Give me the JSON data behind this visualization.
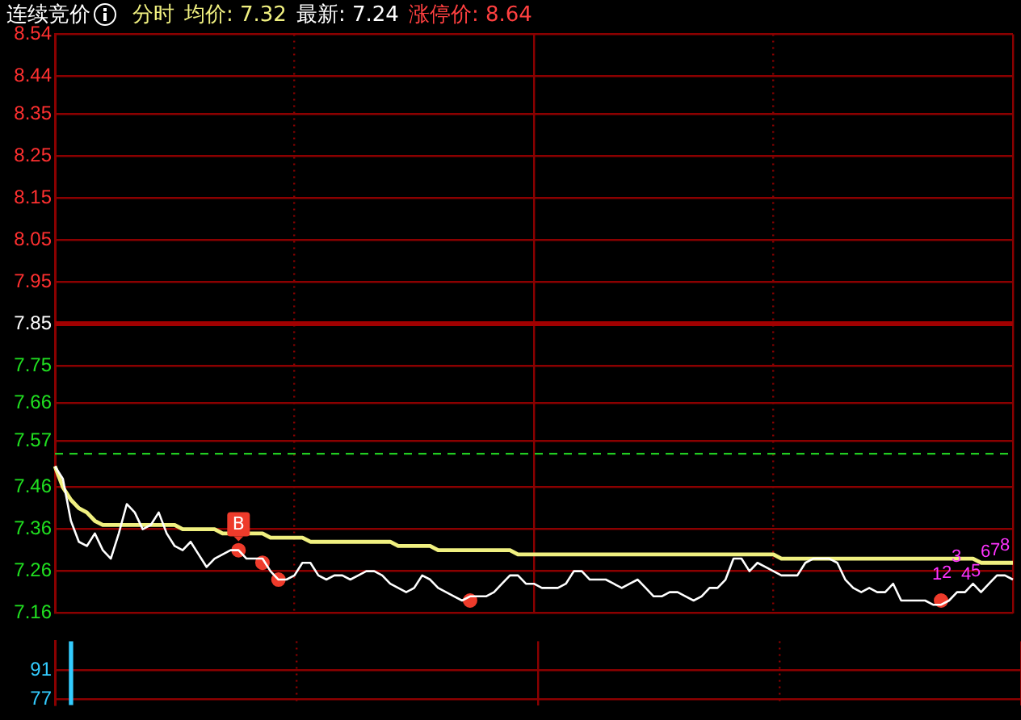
{
  "chart_data": [
    {
      "type": "line",
      "title": "连续竞价",
      "annotations": [
        "分时",
        "均价: 7.32",
        "最新: 7.24",
        "涨停价: 8.64",
        {
          "text": "B",
          "y": 7.37
        },
        "1",
        "2",
        "3",
        "4",
        "5",
        "6",
        "7",
        "8"
      ],
      "categories": [
        null,
        null,
        null,
        null,
        null,
        null,
        null,
        null,
        null,
        null,
        null,
        null,
        null,
        null,
        null,
        null,
        null,
        null,
        null,
        null,
        null,
        null,
        null,
        null,
        null,
        null,
        null,
        null,
        null,
        null,
        null,
        null,
        null,
        null,
        null,
        null,
        null,
        null,
        null,
        null,
        null,
        null,
        null,
        null,
        null,
        null,
        null,
        null,
        null,
        null,
        null,
        null,
        null,
        null,
        null,
        null,
        null,
        null,
        null,
        null,
        null,
        null,
        null,
        null,
        null,
        null,
        null,
        null,
        null,
        null,
        null,
        null,
        null,
        null,
        null,
        null,
        null,
        null,
        null,
        null,
        null,
        null,
        null,
        null,
        null,
        null,
        null,
        null,
        null,
        null,
        null,
        null,
        null,
        null,
        null,
        null,
        null,
        null,
        null,
        null,
        null,
        null,
        null,
        null,
        null,
        null,
        null,
        null,
        null,
        null,
        null,
        null,
        null,
        null,
        null,
        null,
        null,
        null,
        null,
        null,
        null
      ],
      "ylim": [
        7.16,
        8.54
      ],
      "yticks": [
        8.54,
        8.44,
        8.35,
        8.25,
        8.15,
        8.05,
        7.95,
        7.85,
        7.75,
        7.66,
        7.57,
        7.46,
        7.36,
        7.26,
        7.16
      ],
      "tick_labels": "y",
      "grid": true,
      "legend": false,
      "ref_lines": [
        {
          "axis": "y",
          "value": 7.85,
          "color": "#a00000"
        },
        {
          "axis": "y",
          "value": 7.54,
          "color": "#22cc22",
          "line_style": "dashed"
        }
      ],
      "series": [
        {
          "color": "#ffffff",
          "marker": "none",
          "values": [
            7.51,
            7.48,
            7.38,
            7.33,
            7.32,
            7.35,
            7.31,
            7.29,
            7.35,
            7.42,
            7.4,
            7.36,
            7.37,
            7.4,
            7.35,
            7.32,
            7.31,
            7.33,
            7.3,
            7.27,
            7.29,
            7.3,
            7.31,
            7.31,
            7.29,
            7.29,
            7.29,
            7.26,
            7.24,
            7.24,
            7.25,
            7.28,
            7.28,
            7.25,
            7.24,
            7.25,
            7.25,
            7.24,
            7.25,
            7.26,
            7.26,
            7.25,
            7.23,
            7.22,
            7.21,
            7.22,
            7.25,
            7.24,
            7.22,
            7.21,
            7.2,
            7.19,
            7.2,
            7.2,
            7.2,
            7.21,
            7.23,
            7.25,
            7.25,
            7.23,
            7.23,
            7.22,
            7.22,
            7.22,
            7.23,
            7.26,
            7.26,
            7.24,
            7.24,
            7.24,
            7.23,
            7.22,
            7.23,
            7.24,
            7.22,
            7.2,
            7.2,
            7.21,
            7.21,
            7.2,
            7.19,
            7.2,
            7.22,
            7.22,
            7.24,
            7.29,
            7.29,
            7.26,
            7.28,
            7.27,
            7.26,
            7.25,
            7.25,
            7.25,
            7.28,
            7.29,
            7.29,
            7.29,
            7.28,
            7.24,
            7.22,
            7.21,
            7.22,
            7.21,
            7.21,
            7.23,
            7.19,
            7.19,
            7.19,
            7.19,
            7.18,
            7.18,
            7.19,
            7.21,
            7.21,
            7.23,
            7.21,
            7.23,
            7.25,
            7.25,
            7.24
          ]
        },
        {
          "color": "#f0f080",
          "marker": "none",
          "values": [
            7.51,
            7.46,
            7.43,
            7.41,
            7.4,
            7.38,
            7.37,
            7.37,
            7.37,
            7.37,
            7.37,
            7.37,
            7.37,
            7.37,
            7.37,
            7.37,
            7.36,
            7.36,
            7.36,
            7.36,
            7.36,
            7.35,
            7.35,
            7.35,
            7.35,
            7.35,
            7.35,
            7.34,
            7.34,
            7.34,
            7.34,
            7.34,
            7.33,
            7.33,
            7.33,
            7.33,
            7.33,
            7.33,
            7.33,
            7.33,
            7.33,
            7.33,
            7.33,
            7.32,
            7.32,
            7.32,
            7.32,
            7.32,
            7.31,
            7.31,
            7.31,
            7.31,
            7.31,
            7.31,
            7.31,
            7.31,
            7.31,
            7.31,
            7.3,
            7.3,
            7.3,
            7.3,
            7.3,
            7.3,
            7.3,
            7.3,
            7.3,
            7.3,
            7.3,
            7.3,
            7.3,
            7.3,
            7.3,
            7.3,
            7.3,
            7.3,
            7.3,
            7.3,
            7.3,
            7.3,
            7.3,
            7.3,
            7.3,
            7.3,
            7.3,
            7.3,
            7.3,
            7.3,
            7.3,
            7.3,
            7.3,
            7.29,
            7.29,
            7.29,
            7.29,
            7.29,
            7.29,
            7.29,
            7.29,
            7.29,
            7.29,
            7.29,
            7.29,
            7.29,
            7.29,
            7.29,
            7.29,
            7.29,
            7.29,
            7.29,
            7.29,
            7.29,
            7.29,
            7.29,
            7.29,
            7.29,
            7.28,
            7.28,
            7.28,
            7.28,
            7.28
          ]
        },
        {
          "type": "scatter",
          "color": "#ee3b2b",
          "marker": "circle",
          "values": [
            null,
            null,
            null,
            null,
            null,
            null,
            null,
            null,
            null,
            null,
            null,
            null,
            null,
            null,
            null,
            null,
            null,
            null,
            null,
            null,
            null,
            null,
            null,
            7.31,
            null,
            null,
            7.28,
            null,
            7.24,
            null,
            null,
            null,
            null,
            null,
            null,
            null,
            null,
            null,
            null,
            null,
            null,
            null,
            null,
            null,
            null,
            null,
            null,
            null,
            null,
            null,
            null,
            null,
            7.19,
            null,
            null,
            null,
            null,
            null,
            null,
            null,
            null,
            null,
            null,
            null,
            null,
            null,
            null,
            null,
            null,
            null,
            null,
            null,
            null,
            null,
            null,
            null,
            null,
            null,
            null,
            null,
            null,
            null,
            null,
            null,
            null,
            null,
            null,
            null,
            null,
            null,
            null,
            null,
            null,
            null,
            null,
            null,
            null,
            null,
            null,
            null,
            null,
            null,
            null,
            null,
            null,
            null,
            null,
            null,
            null,
            null,
            null,
            7.19,
            null,
            null,
            null,
            null,
            null,
            null,
            null,
            null,
            null
          ]
        }
      ]
    },
    {
      "type": "bar",
      "categories": [
        null,
        null,
        null,
        null,
        null,
        null,
        null,
        null,
        null,
        null,
        null,
        null,
        null,
        null,
        null,
        null,
        null,
        null,
        null,
        null,
        null,
        null,
        null,
        null,
        null,
        null,
        null,
        null,
        null,
        null,
        null,
        null,
        null,
        null,
        null,
        null,
        null,
        null,
        null,
        null,
        null,
        null,
        null,
        null,
        null,
        null,
        null,
        null,
        null,
        null,
        null,
        null,
        null,
        null,
        null,
        null,
        null,
        null,
        null,
        null,
        null,
        null,
        null,
        null,
        null,
        null,
        null,
        null,
        null,
        null,
        null,
        null,
        null,
        null,
        null,
        null,
        null,
        null,
        null,
        null,
        null,
        null,
        null,
        null,
        null,
        null,
        null,
        null,
        null,
        null,
        null,
        null,
        null,
        null,
        null,
        null,
        null,
        null,
        null,
        null,
        null,
        null,
        null,
        null,
        null,
        null,
        null,
        null,
        null,
        null,
        null,
        null,
        null,
        null,
        null,
        null,
        null,
        null,
        null,
        null,
        null
      ],
      "ylim": [
        74,
        105
      ],
      "yticks": [
        91,
        77
      ],
      "tick_labels": "y",
      "grid": true,
      "legend": false,
      "series": [
        {
          "color": "#33ccff",
          "values": [
            null,
            null,
            105,
            null,
            null,
            null,
            null,
            null,
            null,
            null,
            null,
            null,
            null,
            null,
            null,
            null,
            null,
            null,
            null,
            null,
            null,
            null,
            null,
            null,
            null,
            null,
            null,
            null,
            null,
            null,
            null,
            null,
            null,
            null,
            null,
            null,
            null,
            null,
            null,
            null,
            null,
            null,
            null,
            null,
            null,
            null,
            null,
            null,
            null,
            null,
            null,
            null,
            null,
            null,
            null,
            null,
            null,
            null,
            null,
            null,
            null,
            null,
            null,
            null,
            null,
            null,
            null,
            null,
            null,
            null,
            null,
            null,
            null,
            null,
            null,
            null,
            null,
            null,
            null,
            null,
            null,
            null,
            null,
            null,
            null,
            null,
            null,
            null,
            null,
            null,
            null,
            null,
            null,
            null,
            null,
            null,
            null,
            null,
            null,
            null,
            null,
            null,
            null,
            null,
            null,
            null,
            null,
            null,
            null,
            null,
            null,
            null,
            null,
            null,
            null,
            null,
            null,
            null,
            null,
            null,
            null
          ]
        }
      ]
    }
  ]
}
